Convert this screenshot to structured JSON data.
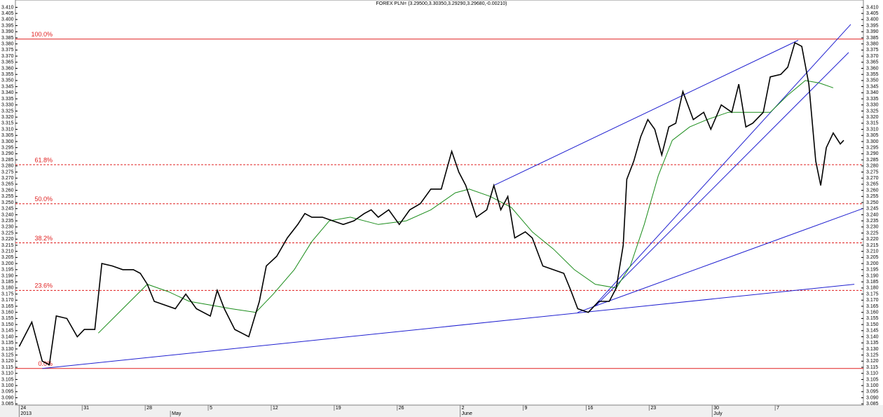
{
  "chart_data": {
    "type": "line",
    "title": "FOREX PLN= (3.29500,3.30350,3.29290,3.29680,-0.00210)",
    "xlim": [
      -0.3,
      67
    ],
    "ylim": [
      3.084,
      3.416
    ],
    "yticks": [
      3.085,
      {
        "value": 3.09,
        "label": "3.090"
      },
      3.095,
      {
        "value": 3.1,
        "label": "3.100"
      },
      3.105,
      {
        "value": 3.11,
        "label": "3.110"
      },
      3.115,
      {
        "value": 3.12,
        "label": "3.120"
      },
      3.125,
      {
        "value": 3.13,
        "label": "3.130"
      },
      3.135,
      {
        "value": 3.14,
        "label": "3.140"
      },
      3.145,
      {
        "value": 3.15,
        "label": "3.150"
      },
      3.155,
      {
        "value": 3.16,
        "label": "3.160"
      },
      3.165,
      {
        "value": 3.17,
        "label": "3.170"
      },
      3.175,
      {
        "value": 3.18,
        "label": "3.180"
      },
      3.185,
      {
        "value": 3.19,
        "label": "3.190"
      },
      3.195,
      {
        "value": 3.2,
        "label": "3.200"
      },
      3.205,
      {
        "value": 3.21,
        "label": "3.210"
      },
      3.215,
      {
        "value": 3.22,
        "label": "3.220"
      },
      3.225,
      {
        "value": 3.23,
        "label": "3.230"
      },
      3.235,
      {
        "value": 3.24,
        "label": "3.240"
      },
      3.245,
      {
        "value": 3.25,
        "label": "3.250"
      },
      3.255,
      {
        "value": 3.26,
        "label": "3.260"
      },
      3.265,
      {
        "value": 3.27,
        "label": "3.270"
      },
      3.275,
      {
        "value": 3.28,
        "label": "3.280"
      },
      3.285,
      {
        "value": 3.29,
        "label": "3.290"
      },
      3.295,
      {
        "value": 3.3,
        "label": "3.300"
      },
      3.305,
      {
        "value": 3.31,
        "label": "3.310"
      },
      3.315,
      {
        "value": 3.32,
        "label": "3.320"
      },
      3.325,
      {
        "value": 3.33,
        "label": "3.330"
      },
      3.335,
      {
        "value": 3.34,
        "label": "3.340"
      },
      3.345,
      {
        "value": 3.35,
        "label": "3.350"
      },
      3.355,
      {
        "value": 3.36,
        "label": "3.360"
      },
      3.365,
      {
        "value": 3.37,
        "label": "3.370"
      },
      3.375,
      {
        "value": 3.38,
        "label": "3.380"
      },
      3.385,
      {
        "value": 3.39,
        "label": "3.390"
      },
      3.395,
      {
        "value": 3.4,
        "label": "3.400"
      },
      3.405,
      {
        "value": 3.41,
        "label": "3.410"
      }
    ],
    "xticks": [
      {
        "value": 0,
        "label": "24"
      },
      {
        "value": 5,
        "label": "31"
      },
      {
        "value": 10,
        "label": "28"
      },
      {
        "value": 15,
        "label": "5"
      },
      {
        "value": 20,
        "label": "12"
      },
      {
        "value": 25,
        "label": "19"
      },
      {
        "value": 30,
        "label": "26"
      },
      {
        "value": 35,
        "label": "2"
      },
      {
        "value": 40,
        "label": "9"
      },
      {
        "value": 45,
        "label": "16"
      },
      {
        "value": 50,
        "label": "23"
      },
      {
        "value": 55,
        "label": "30"
      },
      {
        "value": 60,
        "label": "7"
      }
    ],
    "month_ticks": [
      {
        "value": 0,
        "label": "2013"
      },
      {
        "value": 12,
        "label": "May"
      },
      {
        "value": 35,
        "label": "June"
      },
      {
        "value": 55,
        "label": "July"
      }
    ],
    "series": [
      {
        "color": "#000000",
        "x": [
          0,
          1,
          1.83,
          2.39,
          2.94,
          3.78,
          4.61,
          5.17,
          6,
          6.56,
          7.39,
          8.22,
          9.06,
          9.61,
          10.17,
          10.72,
          11.56,
          12.39,
          13.22,
          14.06,
          15.17,
          15.72,
          16.28,
          17.11,
          17.67,
          18.22,
          19.06,
          19.61,
          20.44,
          21.28,
          22.11,
          22.67,
          23.22,
          24.06,
          24.89,
          25.72,
          26.56,
          27.39,
          27.94,
          28.5,
          29.33,
          30.17,
          31,
          31.83,
          32.67,
          33.5,
          34.33,
          34.89,
          35.44,
          36.28,
          37.11,
          37.67,
          38.22,
          38.78,
          39.33,
          40.17,
          40.72,
          41.56,
          42.39,
          43.22,
          43.78,
          44.33,
          45.17,
          46,
          46.83,
          47.39,
          47.94,
          48.22,
          48.78,
          49.33,
          49.89,
          50.44,
          51,
          51.56,
          52.11,
          52.67,
          53.5,
          54.33,
          54.89,
          55.72,
          56.56,
          57.11,
          57.67,
          58.22,
          59.06,
          59.61,
          60.44,
          61,
          61.56,
          62.11,
          62.67,
          63.22,
          63.61,
          64.06,
          64.61,
          65.17,
          65.44
        ],
        "values": [
          3.132,
          3.152,
          3.12,
          3.117,
          3.157,
          3.155,
          3.14,
          3.146,
          3.146,
          3.2,
          3.198,
          3.195,
          3.195,
          3.192,
          3.183,
          3.169,
          3.166,
          3.163,
          3.175,
          3.163,
          3.157,
          3.178,
          3.163,
          3.146,
          3.143,
          3.14,
          3.169,
          3.198,
          3.206,
          3.221,
          3.232,
          3.241,
          3.238,
          3.238,
          3.235,
          3.232,
          3.235,
          3.241,
          3.244,
          3.238,
          3.244,
          3.232,
          3.244,
          3.249,
          3.261,
          3.261,
          3.292,
          3.275,
          3.264,
          3.238,
          3.244,
          3.264,
          3.244,
          3.255,
          3.221,
          3.226,
          3.221,
          3.198,
          3.195,
          3.192,
          3.178,
          3.163,
          3.16,
          3.169,
          3.169,
          3.18,
          3.215,
          3.269,
          3.284,
          3.304,
          3.318,
          3.31,
          3.289,
          3.312,
          3.315,
          3.341,
          3.318,
          3.324,
          3.31,
          3.33,
          3.324,
          3.347,
          3.312,
          3.315,
          3.324,
          3.353,
          3.355,
          3.361,
          3.381,
          3.378,
          3.347,
          3.284,
          3.264,
          3.295,
          3.307,
          3.298,
          3.301
        ]
      },
      {
        "color": "#1a8c1a",
        "x": [
          6.28,
          8.22,
          10.17,
          11.83,
          13.5,
          15.17,
          16.83,
          18.78,
          20.17,
          21.83,
          23.22,
          24.61,
          26.28,
          28.5,
          30.72,
          32.67,
          34.61,
          35.72,
          37.39,
          39.06,
          40.72,
          42.39,
          44.06,
          45.72,
          47.39,
          48.5,
          49.61,
          50.72,
          51.83,
          53.22,
          54.61,
          56.28,
          57.94,
          59.61,
          61,
          62.39,
          63.5,
          64.61
        ],
        "values": [
          3.143,
          3.163,
          3.183,
          3.177,
          3.169,
          3.166,
          3.163,
          3.16,
          3.175,
          3.195,
          3.218,
          3.235,
          3.238,
          3.232,
          3.235,
          3.244,
          3.258,
          3.261,
          3.255,
          3.246,
          3.226,
          3.212,
          3.195,
          3.183,
          3.18,
          3.198,
          3.232,
          3.272,
          3.301,
          3.312,
          3.318,
          3.324,
          3.324,
          3.324,
          3.338,
          3.35,
          3.348,
          3.344
        ]
      }
    ],
    "levels_color": "#e02020",
    "levels": [
      {
        "value": 3.384,
        "label": "100.0%",
        "solid": true
      },
      {
        "value": 3.281,
        "label": "61.8%"
      },
      {
        "value": 3.249,
        "label": "50.0%"
      },
      {
        "value": 3.217,
        "label": "38.2%"
      },
      {
        "value": 3.178,
        "label": "23.6%"
      },
      {
        "value": 3.114,
        "label": "0.0%",
        "solid": true
      }
    ],
    "trendline_color": "#2020d0",
    "trendlines": [
      {
        "x": [
          1.83,
          66.28
        ],
        "values": [
          3.114,
          3.183
        ]
      },
      {
        "x": [
          44.33,
          66.94
        ],
        "values": [
          3.16,
          3.245
        ]
      },
      {
        "x": [
          45.17,
          66
        ],
        "values": [
          3.16,
          3.396
        ]
      },
      {
        "x": [
          45.72,
          65.83
        ],
        "values": [
          3.165,
          3.373
        ]
      },
      {
        "x": [
          37.67,
          61.83
        ],
        "values": [
          3.264,
          3.383
        ]
      }
    ]
  }
}
